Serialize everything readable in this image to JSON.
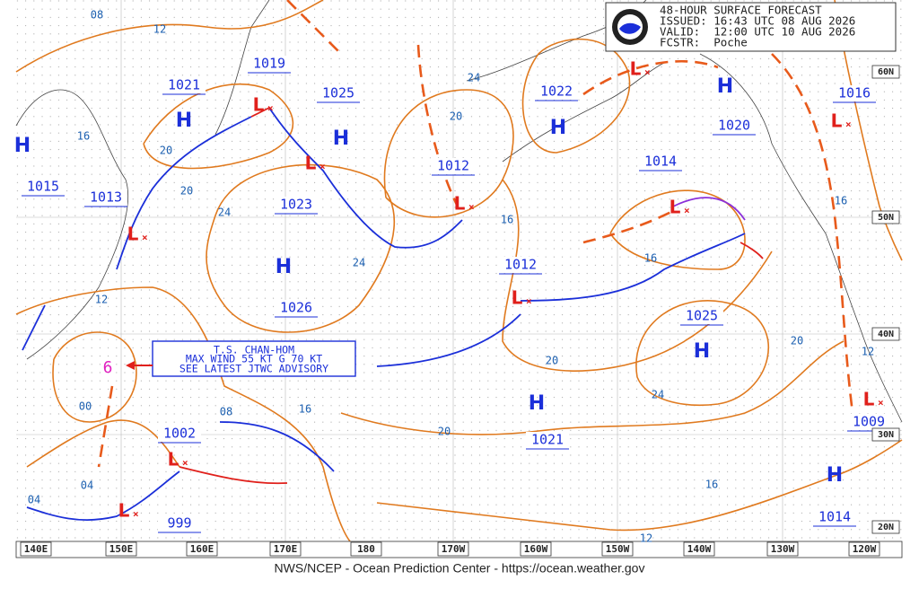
{
  "header": {
    "lines": [
      "48-HOUR SURFACE FORECAST",
      "ISSUED: 16:43 UTC 08 AUG 2026",
      "VALID:  12:00 UTC 10 AUG 2026",
      "FCSTR:  Poche"
    ]
  },
  "storm_box": {
    "lines": [
      "T.S. CHAN-HOM",
      "MAX WIND 55 KT G 70 KT",
      "SEE LATEST JTWC ADVISORY"
    ]
  },
  "high_letter": "H",
  "low_letter": "L",
  "pressure_labels": [
    "1021",
    "1019",
    "1025",
    "1022",
    "1016",
    "1020",
    "1015",
    "1013",
    "1023",
    "1012",
    "1014",
    "1012",
    "1026",
    "1025",
    "1002",
    "1021",
    "1009",
    "999",
    "1014"
  ],
  "isobar_labels": [
    "08",
    "12",
    "16",
    "20",
    "20",
    "24",
    "24",
    "12",
    "00",
    "08",
    "16",
    "04",
    "04",
    "20",
    "24",
    "16",
    "16",
    "16",
    "20",
    "24",
    "20",
    "12",
    "20",
    "16",
    "12"
  ],
  "longitudes": [
    "140E",
    "150E",
    "160E",
    "170E",
    "180",
    "170W",
    "160W",
    "150W",
    "140W",
    "130W",
    "120W"
  ],
  "latitudes": [
    "60N",
    "50N",
    "40N",
    "30N",
    "20N"
  ],
  "footer": "NWS/NCEP - Ocean Prediction Center - https://ocean.weather.gov"
}
